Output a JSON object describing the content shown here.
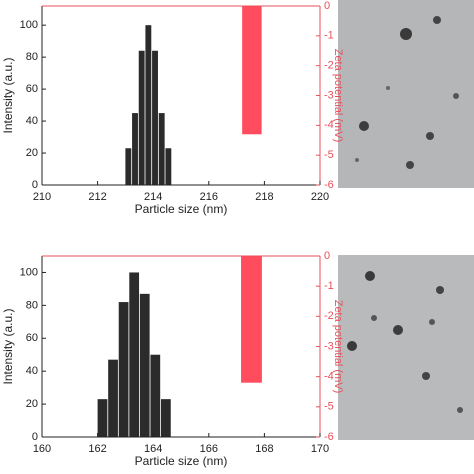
{
  "chart_data": [
    {
      "type": "histogram",
      "x_label": "Particle size (nm)",
      "y_label": "Intensity (a.u.)",
      "y2_label": "Zeta potential (mV)",
      "bins": [
        213.0,
        213.24,
        213.48,
        213.72,
        213.96,
        214.2,
        214.44,
        214.68
      ],
      "values": [
        23,
        45,
        84,
        100,
        84,
        45,
        23
      ],
      "color": "#2b2b2b",
      "xlim": [
        210,
        220
      ],
      "xticks": [
        210,
        212,
        214,
        216,
        218,
        220
      ],
      "ylim": [
        0,
        112
      ],
      "yticks": [
        0,
        20,
        40,
        60,
        80,
        100
      ],
      "y2lim": [
        -6,
        0
      ],
      "y2ticks": [
        0,
        -1,
        -2,
        -3,
        -4,
        -5,
        -6
      ],
      "series2": {
        "axis": "y2",
        "bins": [
          217.2,
          217.9
        ],
        "values": [
          -4.3
        ],
        "color": "#ff4d5e"
      }
    },
    {
      "type": "histogram",
      "x_label": "Particle size (nm)",
      "y_label": "Intensity (a.u.)",
      "y2_label": "Zeta potential (mV)",
      "bins": [
        162.0,
        162.38,
        162.76,
        163.14,
        163.52,
        163.9,
        164.28,
        164.66
      ],
      "values": [
        23,
        47,
        82,
        100,
        87,
        50,
        23
      ],
      "color": "#2b2b2b",
      "xlim": [
        160,
        170
      ],
      "xticks": [
        160,
        162,
        164,
        166,
        168,
        170
      ],
      "ylim": [
        0,
        110
      ],
      "yticks": [
        0,
        20,
        40,
        60,
        80,
        100
      ],
      "y2lim": [
        -6,
        0
      ],
      "y2ticks": [
        0,
        -1,
        -2,
        -3,
        -4,
        -5,
        -6
      ],
      "series2": {
        "axis": "y2",
        "bins": [
          167.16,
          167.91
        ],
        "values": [
          -4.2
        ],
        "color": "#ff4d5e"
      }
    }
  ]
}
